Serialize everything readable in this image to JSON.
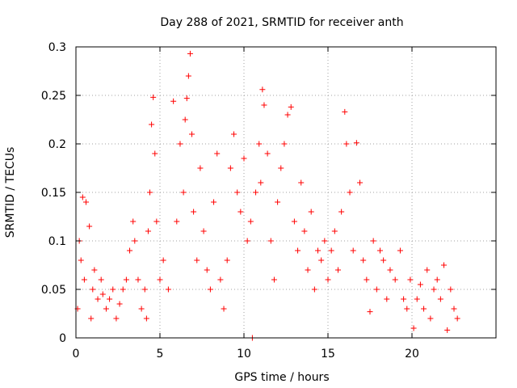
{
  "chart_data": {
    "type": "scatter",
    "title": "Day 288 of 2021, SRMTID for receiver anth",
    "xlabel": "GPS time / hours",
    "ylabel": "SRMTID / TECUs",
    "xlim": [
      0,
      25
    ],
    "ylim": [
      0,
      0.3
    ],
    "x_ticks": [
      0,
      5,
      10,
      15,
      20
    ],
    "x_tick_labels": [
      "0",
      "5",
      "10",
      "15",
      "20"
    ],
    "y_ticks": [
      0,
      0.05,
      0.1,
      0.15,
      0.2,
      0.25,
      0.3
    ],
    "y_tick_labels": [
      "0",
      "0.05",
      "0.1",
      "0.15",
      "0.2",
      "0.25",
      "0.3"
    ],
    "grid": true,
    "marker": "+",
    "color": "#ff0000",
    "series": [
      {
        "name": "SRMTID",
        "points": [
          [
            0.1,
            0.03
          ],
          [
            0.2,
            0.1
          ],
          [
            0.3,
            0.08
          ],
          [
            0.4,
            0.145
          ],
          [
            0.5,
            0.06
          ],
          [
            0.6,
            0.14
          ],
          [
            0.8,
            0.115
          ],
          [
            0.9,
            0.02
          ],
          [
            1.0,
            0.05
          ],
          [
            1.1,
            0.07
          ],
          [
            1.3,
            0.04
          ],
          [
            1.5,
            0.06
          ],
          [
            1.6,
            0.045
          ],
          [
            1.8,
            0.03
          ],
          [
            2.0,
            0.04
          ],
          [
            2.2,
            0.05
          ],
          [
            2.4,
            0.02
          ],
          [
            2.6,
            0.035
          ],
          [
            2.8,
            0.05
          ],
          [
            3.0,
            0.06
          ],
          [
            3.2,
            0.09
          ],
          [
            3.4,
            0.12
          ],
          [
            3.5,
            0.1
          ],
          [
            3.7,
            0.06
          ],
          [
            3.9,
            0.03
          ],
          [
            4.1,
            0.05
          ],
          [
            4.2,
            0.02
          ],
          [
            4.3,
            0.11
          ],
          [
            4.4,
            0.15
          ],
          [
            4.5,
            0.22
          ],
          [
            4.6,
            0.248
          ],
          [
            4.7,
            0.19
          ],
          [
            4.8,
            0.12
          ],
          [
            5.0,
            0.06
          ],
          [
            5.2,
            0.08
          ],
          [
            5.5,
            0.05
          ],
          [
            5.8,
            0.244
          ],
          [
            6.0,
            0.12
          ],
          [
            6.2,
            0.2
          ],
          [
            6.4,
            0.15
          ],
          [
            6.5,
            0.225
          ],
          [
            6.6,
            0.247
          ],
          [
            6.7,
            0.27
          ],
          [
            6.8,
            0.293
          ],
          [
            6.9,
            0.21
          ],
          [
            7.0,
            0.13
          ],
          [
            7.2,
            0.08
          ],
          [
            7.4,
            0.175
          ],
          [
            7.6,
            0.11
          ],
          [
            7.8,
            0.07
          ],
          [
            8.0,
            0.05
          ],
          [
            8.2,
            0.14
          ],
          [
            8.4,
            0.19
          ],
          [
            8.6,
            0.06
          ],
          [
            8.8,
            0.03
          ],
          [
            9.0,
            0.08
          ],
          [
            9.2,
            0.175
          ],
          [
            9.4,
            0.21
          ],
          [
            9.6,
            0.15
          ],
          [
            9.8,
            0.13
          ],
          [
            10.0,
            0.185
          ],
          [
            10.2,
            0.1
          ],
          [
            10.4,
            0.12
          ],
          [
            10.5,
            0.0
          ],
          [
            10.7,
            0.15
          ],
          [
            10.9,
            0.2
          ],
          [
            11.0,
            0.16
          ],
          [
            11.1,
            0.256
          ],
          [
            11.2,
            0.24
          ],
          [
            11.4,
            0.19
          ],
          [
            11.6,
            0.1
          ],
          [
            11.8,
            0.06
          ],
          [
            12.0,
            0.14
          ],
          [
            12.2,
            0.175
          ],
          [
            12.4,
            0.2
          ],
          [
            12.6,
            0.23
          ],
          [
            12.8,
            0.238
          ],
          [
            13.0,
            0.12
          ],
          [
            13.2,
            0.09
          ],
          [
            13.4,
            0.16
          ],
          [
            13.6,
            0.11
          ],
          [
            13.8,
            0.07
          ],
          [
            14.0,
            0.13
          ],
          [
            14.2,
            0.05
          ],
          [
            14.4,
            0.09
          ],
          [
            14.6,
            0.08
          ],
          [
            14.8,
            0.1
          ],
          [
            15.0,
            0.06
          ],
          [
            15.2,
            0.09
          ],
          [
            15.4,
            0.11
          ],
          [
            15.6,
            0.07
          ],
          [
            15.8,
            0.13
          ],
          [
            16.0,
            0.233
          ],
          [
            16.1,
            0.2
          ],
          [
            16.3,
            0.15
          ],
          [
            16.5,
            0.09
          ],
          [
            16.7,
            0.201
          ],
          [
            16.9,
            0.16
          ],
          [
            17.1,
            0.08
          ],
          [
            17.3,
            0.06
          ],
          [
            17.5,
            0.027
          ],
          [
            17.7,
            0.1
          ],
          [
            17.9,
            0.05
          ],
          [
            18.1,
            0.09
          ],
          [
            18.3,
            0.08
          ],
          [
            18.5,
            0.04
          ],
          [
            18.7,
            0.07
          ],
          [
            19.0,
            0.06
          ],
          [
            19.3,
            0.09
          ],
          [
            19.5,
            0.04
          ],
          [
            19.7,
            0.03
          ],
          [
            19.9,
            0.06
          ],
          [
            20.1,
            0.01
          ],
          [
            20.3,
            0.04
          ],
          [
            20.5,
            0.055
          ],
          [
            20.7,
            0.03
          ],
          [
            20.9,
            0.07
          ],
          [
            21.1,
            0.02
          ],
          [
            21.3,
            0.05
          ],
          [
            21.5,
            0.06
          ],
          [
            21.7,
            0.04
          ],
          [
            21.9,
            0.075
          ],
          [
            22.1,
            0.008
          ],
          [
            22.3,
            0.05
          ],
          [
            22.5,
            0.03
          ],
          [
            22.7,
            0.02
          ]
        ]
      }
    ]
  }
}
